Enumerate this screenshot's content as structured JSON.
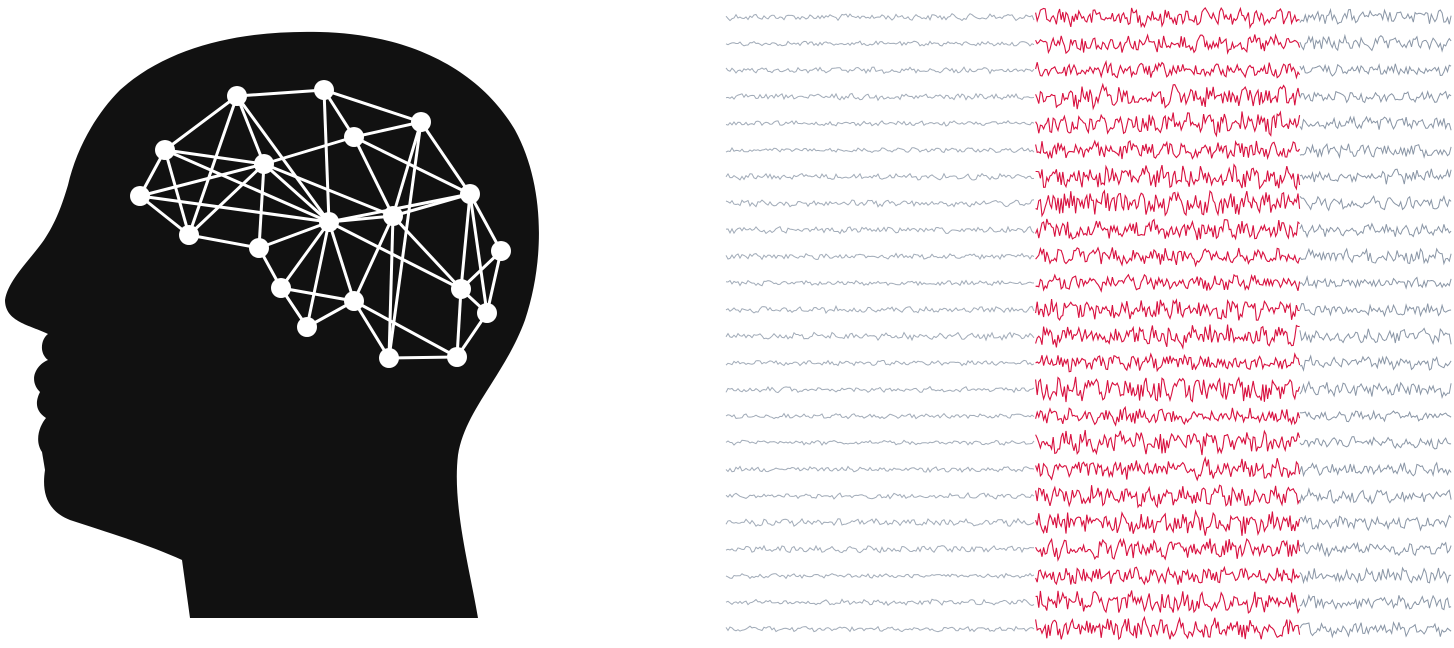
{
  "illustration": {
    "head_icon": "human-head-silhouette-icon",
    "brain_icon": "brain-network-icon",
    "silhouette_color": "#111111",
    "network_color": "#ffffff"
  },
  "eeg": {
    "channel_count": 24,
    "baseline_color": "#8a96a6",
    "highlight_color": "#d8103f",
    "highlight_segment_fraction": [
      0.43,
      0.79
    ]
  }
}
